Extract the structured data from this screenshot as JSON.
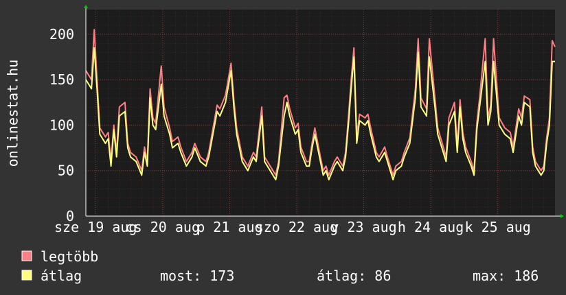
{
  "chart_data": {
    "type": "line",
    "y_label": "onlinestat.hu",
    "xlim": [
      0,
      168
    ],
    "ylim": [
      0,
      227
    ],
    "xticks": [
      {
        "value": 3.5,
        "label": "sze 19 aug"
      },
      {
        "value": 27.5,
        "label": "cs 20 aug"
      },
      {
        "value": 51.5,
        "label": "p 21 aug"
      },
      {
        "value": 75.5,
        "label": "szo 22 aug"
      },
      {
        "value": 99.5,
        "label": "v 23 aug"
      },
      {
        "value": 123.5,
        "label": "h 24 aug"
      },
      {
        "value": 147.5,
        "label": "k 25 aug"
      }
    ],
    "yticks": [
      0,
      50,
      100,
      150,
      200
    ],
    "grid": true,
    "x": [
      0,
      2,
      3,
      4,
      5,
      7,
      8,
      9,
      10,
      11,
      12,
      14,
      15,
      16,
      18,
      20,
      21,
      22,
      23,
      24,
      25,
      27,
      28,
      30,
      31,
      33,
      34,
      36,
      38,
      39,
      41,
      43,
      44,
      47,
      48,
      50,
      52,
      53,
      54,
      56,
      58,
      60,
      61,
      63,
      64,
      66,
      68,
      69,
      71,
      72,
      73,
      75,
      76,
      77,
      79,
      80,
      81,
      82,
      84,
      85,
      86,
      87,
      89,
      90,
      92,
      93,
      94,
      95,
      96,
      97,
      98,
      100,
      101,
      102,
      104,
      105,
      107,
      108,
      110,
      111,
      113,
      114,
      116,
      118,
      119,
      120,
      122,
      123,
      125,
      126,
      128,
      129,
      130,
      132,
      133,
      134,
      135,
      136,
      138,
      139,
      140,
      141,
      143,
      144,
      145,
      146,
      148,
      150,
      152,
      153,
      155,
      156,
      157,
      159,
      160,
      161,
      163,
      164,
      165,
      166,
      167,
      168
    ],
    "series": [
      {
        "name": "legtöbb",
        "color": "#ff7f86",
        "values": [
          160,
          150,
          205,
          150,
          97,
          87,
          92,
          60,
          100,
          70,
          120,
          125,
          80,
          70,
          65,
          50,
          76,
          60,
          140,
          108,
          102,
          165,
          120,
          97,
          82,
          87,
          76,
          60,
          70,
          80,
          65,
          60,
          70,
          122,
          118,
          133,
          168,
          128,
          97,
          65,
          55,
          70,
          65,
          120,
          65,
          55,
          45,
          60,
          130,
          133,
          118,
          97,
          102,
          76,
          60,
          60,
          80,
          97,
          65,
          50,
          55,
          45,
          60,
          65,
          55,
          70,
          108,
          150,
          185,
          88,
          112,
          108,
          112,
          97,
          70,
          65,
          76,
          65,
          45,
          55,
          60,
          70,
          86,
          140,
          195,
          130,
          118,
          195,
          130,
          97,
          76,
          65,
          108,
          125,
          76,
          128,
          92,
          76,
          60,
          50,
          102,
          130,
          195,
          108,
          122,
          195,
          108,
          97,
          92,
          76,
          118,
          108,
          132,
          128,
          76,
          60,
          50,
          55,
          86,
          108,
          193,
          186
        ]
      },
      {
        "name": "átlag",
        "color": "#ffff80",
        "values": [
          150,
          140,
          185,
          140,
          90,
          80,
          85,
          55,
          95,
          65,
          110,
          115,
          75,
          65,
          60,
          45,
          70,
          55,
          130,
          100,
          95,
          145,
          110,
          90,
          75,
          80,
          70,
          55,
          65,
          75,
          60,
          55,
          65,
          115,
          110,
          125,
          160,
          120,
          90,
          60,
          50,
          65,
          60,
          110,
          60,
          50,
          40,
          55,
          110,
          125,
          110,
          90,
          95,
          70,
          55,
          55,
          75,
          90,
          60,
          45,
          50,
          40,
          55,
          60,
          50,
          65,
          100,
          140,
          175,
          80,
          105,
          100,
          105,
          90,
          65,
          60,
          70,
          60,
          40,
          50,
          55,
          65,
          80,
          130,
          180,
          120,
          110,
          175,
          120,
          90,
          70,
          60,
          100,
          115,
          70,
          120,
          85,
          70,
          55,
          45,
          95,
          120,
          170,
          100,
          115,
          170,
          100,
          90,
          85,
          70,
          110,
          100,
          125,
          120,
          70,
          55,
          45,
          50,
          80,
          100,
          170,
          170
        ]
      }
    ],
    "legend_stats": [
      "most: 173",
      "átlag: 86",
      "max: 186"
    ]
  }
}
